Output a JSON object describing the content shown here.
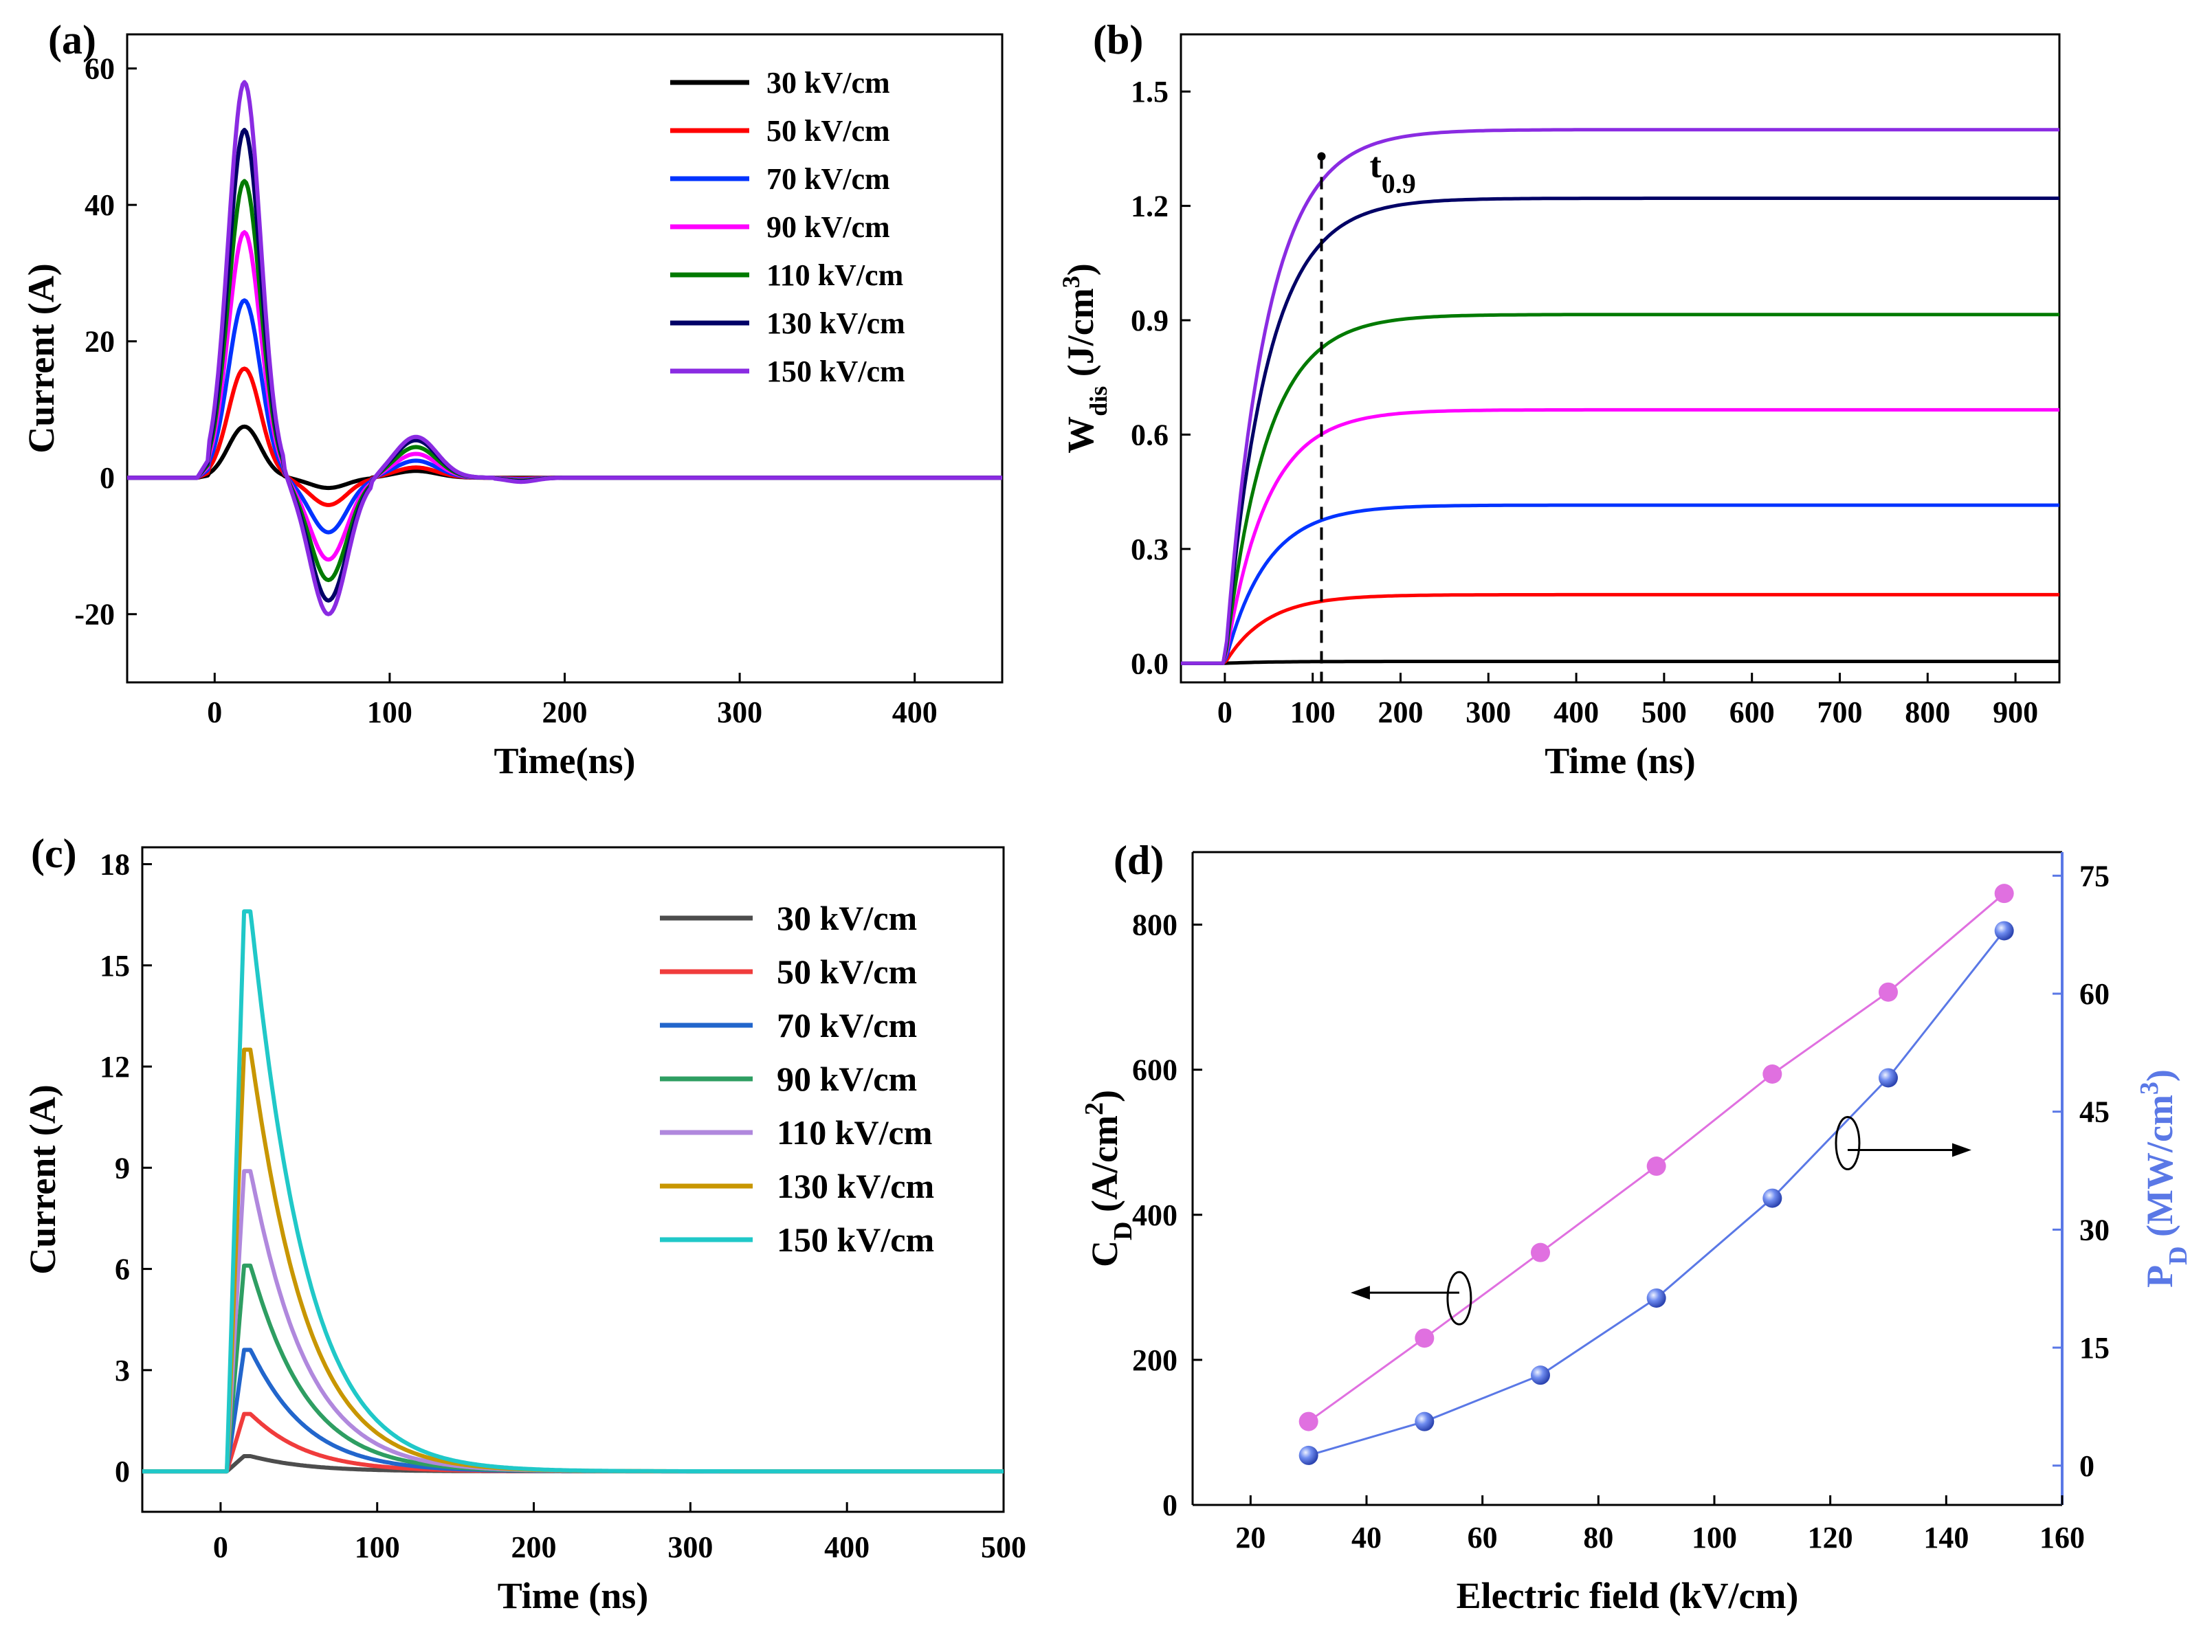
{
  "chart_data": [
    {
      "panel": "(a)",
      "type": "line",
      "xlabel": "Time(ns)",
      "ylabel": "Current (A)",
      "xlim": [
        -50,
        450
      ],
      "ylim": [
        -30,
        65
      ],
      "xticks": [
        0,
        100,
        200,
        300,
        400
      ],
      "yticks": [
        -20,
        0,
        20,
        40,
        60
      ],
      "legend_position": "top-right",
      "series": [
        {
          "name": "30 kV/cm",
          "color": "#000000",
          "peak": 7.5,
          "trough": -1.5,
          "peak2": 1.0
        },
        {
          "name": "50 kV/cm",
          "color": "#ff0000",
          "peak": 16,
          "trough": -4,
          "peak2": 1.5
        },
        {
          "name": "70 kV/cm",
          "color": "#0033ff",
          "peak": 26,
          "trough": -8,
          "peak2": 2.5
        },
        {
          "name": "90 kV/cm",
          "color": "#ff00ff",
          "peak": 36,
          "trough": -12,
          "peak2": 3.5
        },
        {
          "name": "110 kV/cm",
          "color": "#007a00",
          "peak": 43.5,
          "trough": -15,
          "peak2": 4.5
        },
        {
          "name": "130 kV/cm",
          "color": "#000066",
          "peak": 51,
          "trough": -18,
          "peak2": 5.5
        },
        {
          "name": "150 kV/cm",
          "color": "#8a2be2",
          "peak": 58,
          "trough": -20,
          "peak2": 6.0
        }
      ]
    },
    {
      "panel": "(b)",
      "type": "line",
      "xlabel": "Time (ns)",
      "ylabel": "W_dis (J/cm^3)",
      "xlim": [
        -50,
        950
      ],
      "ylim": [
        -0.05,
        1.65
      ],
      "xticks": [
        0,
        100,
        200,
        300,
        400,
        500,
        600,
        700,
        800,
        900
      ],
      "yticks": [
        0.0,
        0.3,
        0.6,
        0.9,
        1.2,
        1.5
      ],
      "annotation": "t0.9",
      "annotation_x": 110,
      "series": [
        {
          "color": "#000000",
          "final": 0.005
        },
        {
          "color": "#ff0000",
          "final": 0.18
        },
        {
          "color": "#0033ff",
          "final": 0.415
        },
        {
          "color": "#ff00ff",
          "final": 0.665
        },
        {
          "color": "#007a00",
          "final": 0.915
        },
        {
          "color": "#000066",
          "final": 1.22
        },
        {
          "color": "#8a2be2",
          "final": 1.4
        }
      ]
    },
    {
      "panel": "(c)",
      "type": "line",
      "xlabel": "Time (ns)",
      "ylabel": "Current (A)",
      "xlim": [
        -50,
        500
      ],
      "ylim": [
        -1.2,
        18.5
      ],
      "xticks": [
        0,
        100,
        200,
        300,
        400,
        500
      ],
      "yticks": [
        0,
        3,
        6,
        9,
        12,
        15,
        18
      ],
      "legend_position": "top-right",
      "series": [
        {
          "name": "30 kV/cm",
          "color": "#4d4d4d",
          "peak": 0.45
        },
        {
          "name": "50 kV/cm",
          "color": "#f03c3c",
          "peak": 1.7
        },
        {
          "name": "70 kV/cm",
          "color": "#2266cc",
          "peak": 3.6
        },
        {
          "name": "90 kV/cm",
          "color": "#2e9e62",
          "peak": 6.1
        },
        {
          "name": "110 kV/cm",
          "color": "#b088dd",
          "peak": 8.9
        },
        {
          "name": "130 kV/cm",
          "color": "#c89600",
          "peak": 12.5
        },
        {
          "name": "150 kV/cm",
          "color": "#20c8c8",
          "peak": 16.6
        }
      ]
    },
    {
      "panel": "(d)",
      "type": "scatter",
      "xlabel": "Electric field (kV/cm)",
      "ylabel": "C_D (A/cm^2)",
      "y2label": "P_D (MW/cm^3)",
      "xlim": [
        10,
        160
      ],
      "ylim": [
        0,
        900
      ],
      "y2lim": [
        -5,
        78
      ],
      "xticks": [
        20,
        40,
        60,
        80,
        100,
        120,
        140,
        160
      ],
      "yticks": [
        0,
        200,
        400,
        600,
        800
      ],
      "y2ticks": [
        0,
        15,
        30,
        45,
        60,
        75
      ],
      "x": [
        30,
        50,
        70,
        90,
        110,
        130,
        150
      ],
      "series": [
        {
          "axis": "left",
          "color": "#e070e0",
          "values": [
            115,
            230,
            348,
            467,
            594,
            707,
            843
          ]
        },
        {
          "axis": "right",
          "color": "#5a78e6",
          "values": [
            1.3,
            5.6,
            11.5,
            21.3,
            34.0,
            49.3,
            68.0
          ]
        }
      ]
    }
  ]
}
